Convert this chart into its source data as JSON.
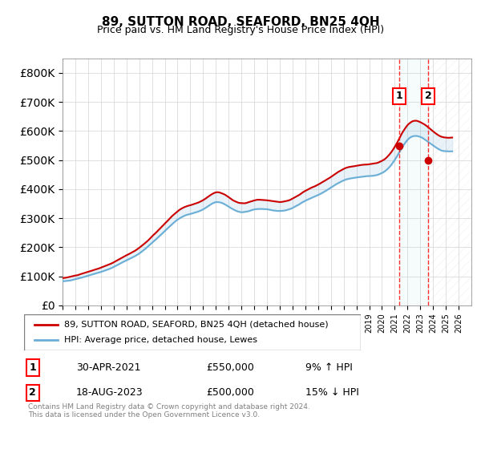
{
  "title": "89, SUTTON ROAD, SEAFORD, BN25 4QH",
  "subtitle": "Price paid vs. HM Land Registry's House Price Index (HPI)",
  "legend_line1": "89, SUTTON ROAD, SEAFORD, BN25 4QH (detached house)",
  "legend_line2": "HPI: Average price, detached house, Lewes",
  "transaction1_label": "1",
  "transaction1_date": "30-APR-2021",
  "transaction1_price": "£550,000",
  "transaction1_hpi": "9% ↑ HPI",
  "transaction2_label": "2",
  "transaction2_date": "18-AUG-2023",
  "transaction2_price": "£500,000",
  "transaction2_hpi": "15% ↓ HPI",
  "footer": "Contains HM Land Registry data © Crown copyright and database right 2024.\nThis data is licensed under the Open Government Licence v3.0.",
  "hpi_color": "#add8e6",
  "price_color": "#cc0000",
  "vline1_x": 2021.33,
  "vline2_x": 2023.63,
  "transaction1_value": 550000,
  "transaction2_value": 500000,
  "ylim": [
    0,
    850000
  ],
  "xlim": [
    1995,
    2027
  ]
}
